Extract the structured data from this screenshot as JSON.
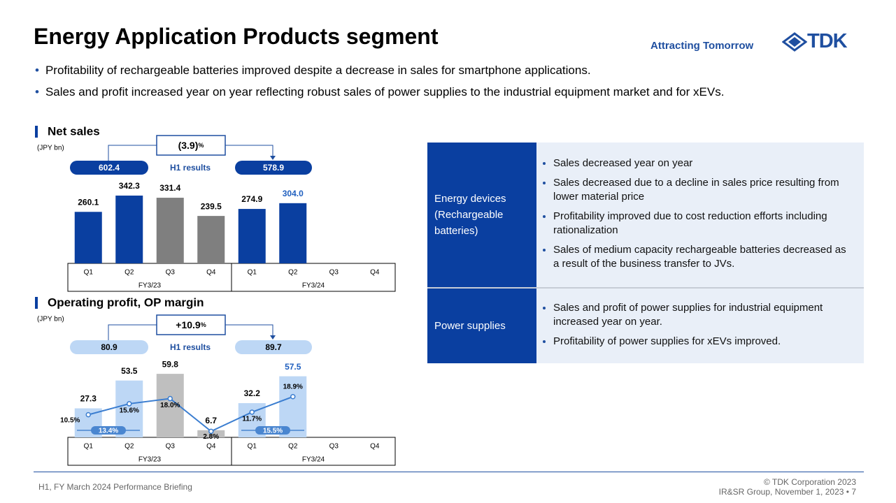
{
  "header": {
    "title": "Energy Application Products segment",
    "tagline": "Attracting Tomorrow",
    "logo": "TDK"
  },
  "bullets": [
    "Profitability of rechargeable batteries improved despite a decrease in sales for smartphone applications.",
    "Sales and profit increased year on year reflecting robust sales of power supplies to the industrial equipment market and for xEVs."
  ],
  "chart_data": [
    {
      "type": "bar",
      "title": "Net sales",
      "unit": "(JPY bn)",
      "categories": [
        "Q1",
        "Q2",
        "Q3",
        "Q4",
        "Q1",
        "Q2",
        "Q3",
        "Q4"
      ],
      "groups": [
        "FY3/23",
        "FY3/24"
      ],
      "values": [
        260.1,
        342.3,
        331.4,
        239.5,
        274.9,
        304.0,
        null,
        null
      ],
      "value_labels": [
        "260.1",
        "342.3",
        "331.4",
        "239.5",
        "274.9",
        "304.0",
        null,
        null
      ],
      "colors": [
        "#0a3fa0",
        "#0a3fa0",
        "#7f7f7f",
        "#7f7f7f",
        "#0a3fa0",
        "#0a3fa0",
        null,
        null
      ],
      "label_colors": [
        "#000000",
        "#000000",
        "#000000",
        "#000000",
        "#000000",
        "#1f5fbf",
        null,
        null
      ],
      "ylim": [
        0,
        400
      ],
      "h1": {
        "label": "H1 results",
        "values": [
          602.4,
          578.9
        ],
        "change": "(3.9)",
        "change_unit": "%",
        "pill_color": "#0a3fa0",
        "pill_text_color": "#ffffff"
      }
    },
    {
      "type": "combo",
      "title": "Operating profit, OP margin",
      "unit": "(JPY bn)",
      "categories": [
        "Q1",
        "Q2",
        "Q3",
        "Q4",
        "Q1",
        "Q2",
        "Q3",
        "Q4"
      ],
      "groups": [
        "FY3/23",
        "FY3/24"
      ],
      "series": [
        {
          "name": "Operating profit",
          "values": [
            27.3,
            53.5,
            59.8,
            6.7,
            32.2,
            57.5,
            null,
            null
          ],
          "colors": [
            "#bdd7f5",
            "#bdd7f5",
            "#bfbfbf",
            "#bfbfbf",
            "#bdd7f5",
            "#bdd7f5",
            null,
            null
          ],
          "label_colors": [
            "#000000",
            "#000000",
            "#000000",
            "#000000",
            "#000000",
            "#1f5fbf",
            null,
            null
          ]
        },
        {
          "name": "OP margin",
          "axis": "y2",
          "color": "#3a7dd0",
          "values": [
            10.5,
            15.6,
            18.0,
            2.8,
            11.7,
            18.9,
            null,
            null
          ],
          "value_labels": [
            "10.5%",
            "15.6%",
            "18.0%",
            "2.8%",
            "11.7%",
            "18.9%",
            null,
            null
          ]
        }
      ],
      "ylim": [
        0,
        75
      ],
      "y2lim": [
        0,
        37
      ],
      "h1": {
        "label": "H1 results",
        "values": [
          80.9,
          89.7
        ],
        "change": "+10.9",
        "change_unit": "%",
        "pill_color": "#bdd7f5",
        "pill_text_color": "#000000"
      },
      "h1_margin": {
        "values": [
          13.4,
          15.5
        ],
        "value_labels": [
          "13.4%",
          "15.5%"
        ],
        "color": "#4a86d0"
      }
    }
  ],
  "table": {
    "rows": [
      {
        "label": "Energy devices (Rechargeable batteries)",
        "items": [
          "Sales decreased year on year",
          "Sales decreased due to a decline in sales price resulting from lower material price",
          "Profitability improved due to cost reduction efforts including rationalization",
          "Sales of medium capacity rechargeable batteries decreased as a result of the business transfer to JVs."
        ]
      },
      {
        "label": "Power supplies",
        "items": [
          "Sales and profit of power supplies for industrial equipment increased year on year.",
          "Profitability of power supplies for xEVs improved."
        ]
      }
    ]
  },
  "footer": {
    "left": "H1, FY March 2024 Performance Briefing",
    "copyright": "© TDK Corporation 2023",
    "group": "IR&SR Group, November 1, 2023",
    "page": "7"
  }
}
